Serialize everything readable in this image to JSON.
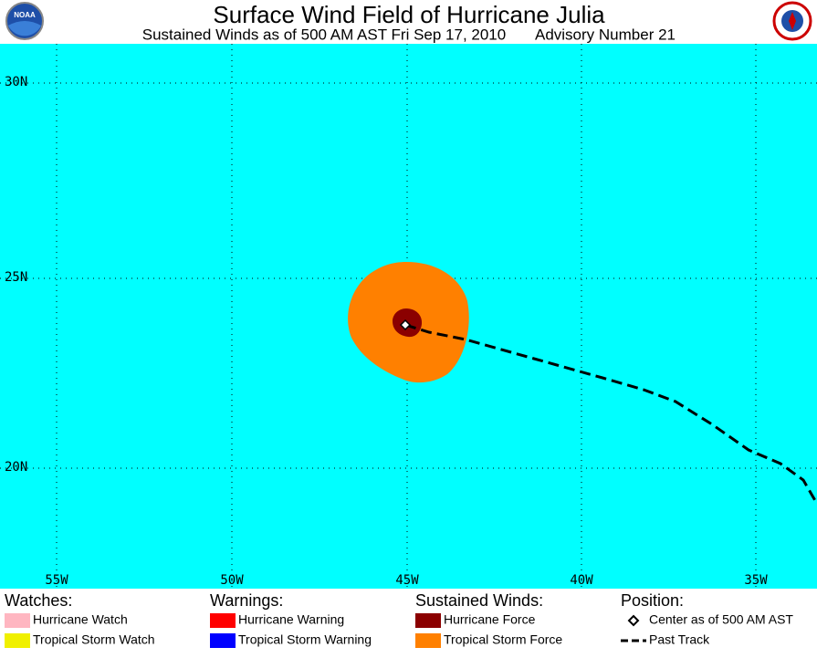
{
  "header": {
    "title": "Surface Wind Field of Hurricane Julia",
    "subtitle": "Sustained Winds as of 500 AM AST Fri Sep 17, 2010",
    "advisory": "Advisory Number 21",
    "logo_text": "NOAA"
  },
  "map": {
    "latitude_labels": [
      "30N",
      "25N",
      "20N"
    ],
    "longitude_labels": [
      "55W",
      "50W",
      "45W",
      "40W",
      "35W"
    ]
  },
  "legend": {
    "groups": [
      {
        "heading": "Watches:",
        "items": [
          "Hurricane Watch",
          "Tropical Storm Watch"
        ]
      },
      {
        "heading": "Warnings:",
        "items": [
          "Hurricane Warning",
          "Tropical Storm Warning"
        ]
      },
      {
        "heading": "Sustained Winds:",
        "items": [
          "Hurricane Force",
          "Tropical Storm Force"
        ]
      },
      {
        "heading": "Position:",
        "items": [
          "Center as of 500 AM AST",
          "Past Track"
        ]
      }
    ]
  }
}
